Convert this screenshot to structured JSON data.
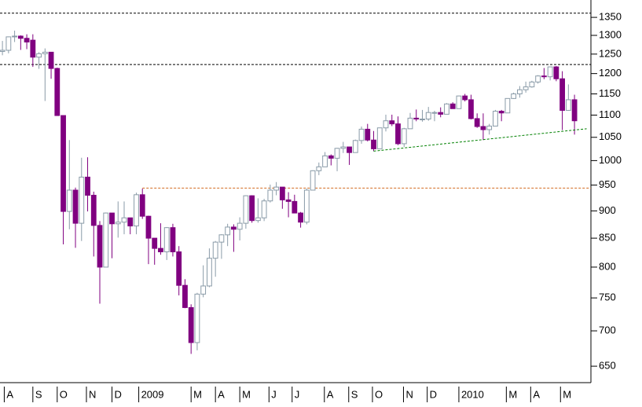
{
  "chart_data": {
    "type": "candlestick",
    "open": [
      1257,
      1260,
      1296,
      1298,
      1292,
      1287,
      1242,
      1251,
      1255,
      1213,
      1099,
      899,
      940,
      877,
      966,
      930,
      873,
      800,
      896,
      876,
      879,
      887,
      872,
      931,
      890,
      850,
      832,
      826,
      869,
      826,
      770,
      735,
      683,
      756,
      769,
      815,
      843,
      856,
      870,
      866,
      877,
      929,
      882,
      887,
      919,
      940,
      946,
      921,
      918,
      896,
      879,
      940,
      979,
      987,
      1010,
      1005,
      1026,
      1029,
      1017,
      1043,
      1068,
      1044,
      1025,
      1071,
      1087,
      1080,
      1036,
      1069,
      1093,
      1091,
      1091,
      1106,
      1106,
      1102,
      1126,
      1115,
      1145,
      1136,
      1092,
      1074,
      1067,
      1075,
      1109,
      1105,
      1139,
      1150,
      1160,
      1167,
      1179,
      1194,
      1192,
      1217,
      1187,
      1111,
      1136
    ],
    "high": [
      1285,
      1297,
      1313,
      1300,
      1303,
      1303,
      1255,
      1265,
      1255,
      1215,
      1099,
      1044,
      945,
      1006,
      1007,
      937,
      881,
      897,
      896,
      918,
      918,
      887,
      935,
      943,
      891,
      850,
      877,
      870,
      876,
      836,
      780,
      740,
      758,
      803,
      832,
      845,
      857,
      876,
      875,
      888,
      930,
      930,
      924,
      923,
      951,
      956,
      946,
      936,
      931,
      898,
      943,
      980,
      996,
      1018,
      1013,
      1027,
      1040,
      1029,
      1045,
      1074,
      1080,
      1064,
      1071,
      1101,
      1101,
      1097,
      1071,
      1105,
      1113,
      1112,
      1119,
      1110,
      1118,
      1128,
      1130,
      1146,
      1150,
      1148,
      1104,
      1104,
      1080,
      1112,
      1112,
      1139,
      1153,
      1169,
      1180,
      1182,
      1196,
      1214,
      1217,
      1219,
      1206,
      1173,
      1148
    ],
    "low": [
      1247,
      1252,
      1282,
      1261,
      1263,
      1217,
      1212,
      1133,
      1187,
      1099,
      839,
      866,
      833,
      845,
      899,
      818,
      741,
      800,
      815,
      851,
      857,
      857,
      857,
      885,
      805,
      804,
      821,
      812,
      818,
      754,
      734,
      667,
      672,
      751,
      767,
      784,
      814,
      836,
      826,
      846,
      867,
      878,
      878,
      881,
      916,
      930,
      904,
      888,
      896,
      869,
      875,
      940,
      970,
      987,
      990,
      978,
      1016,
      991,
      1017,
      1036,
      1041,
      1020,
      1025,
      1063,
      1075,
      1033,
      1029,
      1069,
      1086,
      1085,
      1087,
      1086,
      1095,
      1102,
      1115,
      1115,
      1132,
      1090,
      1071,
      1044,
      1056,
      1075,
      1086,
      1105,
      1138,
      1141,
      1153,
      1165,
      1175,
      1186,
      1183,
      1181,
      1066,
      1110,
      1056
    ],
    "close": [
      1260,
      1296,
      1298,
      1292,
      1282,
      1242,
      1251,
      1255,
      1213,
      1099,
      899,
      940,
      877,
      966,
      930,
      873,
      800,
      896,
      876,
      879,
      887,
      872,
      931,
      890,
      850,
      832,
      826,
      869,
      826,
      770,
      735,
      683,
      756,
      769,
      815,
      843,
      856,
      870,
      866,
      877,
      929,
      882,
      887,
      919,
      940,
      946,
      921,
      918,
      896,
      879,
      940,
      979,
      987,
      1010,
      1005,
      1026,
      1029,
      1017,
      1043,
      1068,
      1044,
      1025,
      1071,
      1087,
      1080,
      1036,
      1069,
      1093,
      1091,
      1091,
      1106,
      1106,
      1102,
      1126,
      1115,
      1145,
      1136,
      1092,
      1074,
      1067,
      1075,
      1109,
      1105,
      1139,
      1150,
      1160,
      1167,
      1179,
      1194,
      1192,
      1217,
      1187,
      1111,
      1136,
      1087
    ],
    "up_color": "#8a9ba8",
    "down_color": "#800080",
    "ylim": [
      628,
      1400
    ],
    "log_scale": true,
    "yticks": [
      650,
      700,
      750,
      800,
      850,
      900,
      950,
      1000,
      1050,
      1100,
      1150,
      1200,
      1250,
      1300,
      1350
    ],
    "xlim": [
      -0.4,
      96.7
    ],
    "xticks": [
      {
        "value": 0.3,
        "label": "A"
      },
      {
        "value": 5,
        "label": "S"
      },
      {
        "value": 9,
        "label": "O"
      },
      {
        "value": 13.8,
        "label": "N"
      },
      {
        "value": 18,
        "label": "D"
      },
      {
        "value": 22.4,
        "label": "2009"
      },
      {
        "value": 31,
        "label": "M"
      },
      {
        "value": 35,
        "label": "A"
      },
      {
        "value": 39,
        "label": "M"
      },
      {
        "value": 43.8,
        "label": "J"
      },
      {
        "value": 47.6,
        "label": "J"
      },
      {
        "value": 52.9,
        "label": "A"
      },
      {
        "value": 56.9,
        "label": "S"
      },
      {
        "value": 60.8,
        "label": "O"
      },
      {
        "value": 65.9,
        "label": "N"
      },
      {
        "value": 69.8,
        "label": "D"
      },
      {
        "value": 75,
        "label": "2010"
      },
      {
        "value": 82.8,
        "label": "M"
      },
      {
        "value": 86.8,
        "label": "A"
      },
      {
        "value": 91.7,
        "label": "M"
      }
    ],
    "hlines": [
      {
        "y": 1362,
        "color": "#000000"
      },
      {
        "y": 1223,
        "color": "#000000"
      },
      {
        "y": 944,
        "x_start": 23,
        "color": "#d2691e"
      }
    ],
    "trendline": {
      "x": [
        61,
        96
      ],
      "y": [
        1020,
        1069
      ],
      "color": "#008000"
    }
  }
}
